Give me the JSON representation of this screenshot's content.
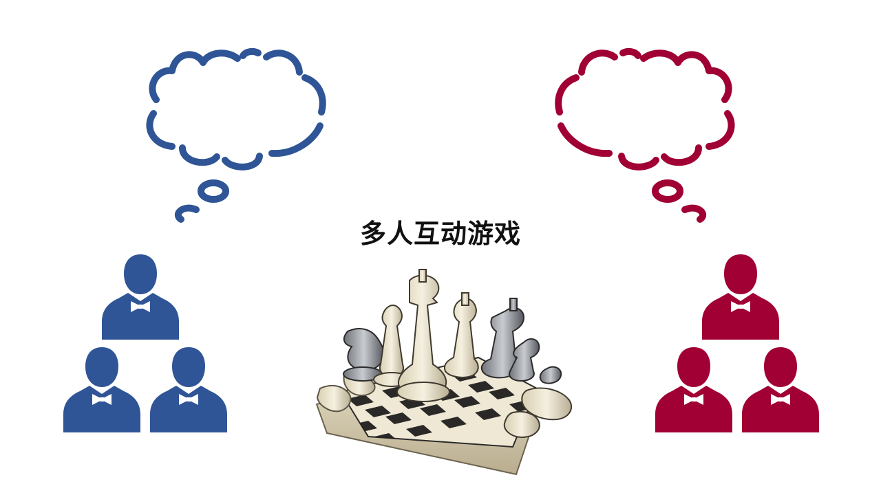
{
  "slide": {
    "title": "多人互动游戏"
  },
  "groups": {
    "left": {
      "color": "#2f5597",
      "people_count": 3
    },
    "right": {
      "color": "#a00033",
      "people_count": 3
    }
  },
  "icons": {
    "thought_bubble": "thought-bubble-icon",
    "person": "person-with-bowtie-icon",
    "chess": "chess-set-icon"
  }
}
